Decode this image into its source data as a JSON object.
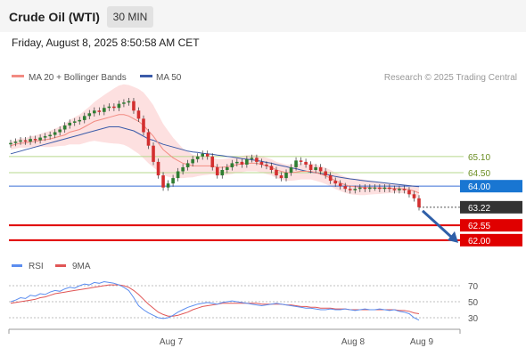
{
  "header": {
    "instrument": "Crude Oil (WTI)",
    "timeframe": "30 MIN",
    "timestamp": "Friday, August 8, 2025 8:50:58 AM CET"
  },
  "legend": {
    "series1": "MA 20 + Bollinger Bands",
    "series2": "MA 50",
    "copyright": "Research © 2025 Trading Central"
  },
  "indicator_legend": {
    "rsi": "RSI",
    "ma9": "9MA"
  },
  "colors": {
    "bullish": "#2e7d32",
    "bearish": "#d32f2f",
    "ma20": "#f28b82",
    "bollinger_fill": "#fde0e0",
    "ma50": "#3b5ba9",
    "support_line": "#e00000",
    "resistance_line": "#b7d88c",
    "pivot_line": "#3b6fd6",
    "pivot_tag": "#1976d2",
    "current_tag": "#333333",
    "target_arrow": "#2f5fa8",
    "rsi_line": "#5b8def",
    "rsi_ma": "#e05555"
  },
  "chart_data": [
    {
      "type": "candlestick",
      "x_labels": [
        "Aug 7",
        "Aug 8",
        "Aug 9"
      ],
      "price_levels": [
        {
          "label": "65.10",
          "value": 65.1,
          "kind": "resistance"
        },
        {
          "label": "64.50",
          "value": 64.5,
          "kind": "resistance"
        },
        {
          "label": "64.00",
          "value": 64.0,
          "kind": "pivot"
        },
        {
          "label": "63.22",
          "value": 63.22,
          "kind": "current"
        },
        {
          "label": "62.55",
          "value": 62.55,
          "kind": "support"
        },
        {
          "label": "62.00",
          "value": 62.0,
          "kind": "support"
        }
      ],
      "close": [
        65.6,
        65.65,
        65.7,
        65.65,
        65.75,
        65.7,
        65.8,
        65.85,
        65.9,
        66.0,
        66.1,
        66.25,
        66.35,
        66.4,
        66.45,
        66.6,
        66.7,
        66.8,
        66.75,
        66.9,
        66.95,
        66.9,
        67.05,
        67.1,
        67.15,
        66.8,
        66.5,
        66.0,
        65.5,
        64.9,
        64.4,
        63.95,
        64.1,
        64.3,
        64.55,
        64.7,
        64.85,
        65.0,
        65.1,
        65.2,
        65.1,
        64.7,
        64.4,
        64.6,
        64.7,
        64.85,
        64.9,
        64.8,
        65.0,
        65.05,
        64.9,
        64.8,
        64.75,
        64.6,
        64.4,
        64.3,
        64.5,
        64.7,
        64.95,
        64.9,
        64.8,
        64.6,
        64.7,
        64.55,
        64.4,
        64.2,
        64.1,
        64.0,
        63.9,
        63.85,
        63.9,
        63.95,
        63.9,
        63.95,
        63.95,
        63.9,
        63.95,
        63.9,
        63.85,
        63.9,
        63.85,
        63.7,
        63.55,
        63.22
      ],
      "ma20": [
        65.5,
        65.55,
        65.6,
        65.6,
        65.65,
        65.65,
        65.7,
        65.72,
        65.75,
        65.8,
        65.85,
        65.9,
        66.0,
        66.05,
        66.1,
        66.2,
        66.3,
        66.4,
        66.45,
        66.5,
        66.55,
        66.6,
        66.65,
        66.65,
        66.6,
        66.5,
        66.4,
        66.25,
        66.05,
        65.85,
        65.6,
        65.35,
        65.2,
        65.05,
        64.95,
        64.85,
        64.8,
        64.75,
        64.75,
        64.75,
        64.75,
        64.75,
        64.7,
        64.7,
        64.72,
        64.75,
        64.8,
        64.82,
        64.85,
        64.85,
        64.85,
        64.8,
        64.75,
        64.7,
        64.6,
        64.55,
        64.5,
        64.5,
        64.52,
        64.55,
        64.55,
        64.55,
        64.5,
        64.45,
        64.38,
        64.3,
        64.2,
        64.12,
        64.05,
        64.0,
        63.98,
        63.97,
        63.95,
        63.95,
        63.94,
        63.93,
        63.93,
        63.92,
        63.92,
        63.91,
        63.9,
        63.87,
        63.82,
        63.75
      ],
      "ma50": [
        65.2,
        65.25,
        65.3,
        65.35,
        65.4,
        65.45,
        65.5,
        65.55,
        65.6,
        65.65,
        65.7,
        65.75,
        65.8,
        65.85,
        65.9,
        65.95,
        66.0,
        66.05,
        66.1,
        66.15,
        66.2,
        66.2,
        66.2,
        66.15,
        66.1,
        66.05,
        65.95,
        65.85,
        65.75,
        65.7,
        65.62,
        65.55,
        65.5,
        65.45,
        65.4,
        65.35,
        65.3,
        65.27,
        65.25,
        65.22,
        65.2,
        65.18,
        65.15,
        65.13,
        65.1,
        65.08,
        65.05,
        65.02,
        65.0,
        64.98,
        64.95,
        64.92,
        64.88,
        64.85,
        64.8,
        64.76,
        64.72,
        64.68,
        64.65,
        64.6,
        64.56,
        64.52,
        64.5,
        64.47,
        64.44,
        64.4,
        64.36,
        64.33,
        64.3,
        64.27,
        64.25,
        64.22,
        64.2,
        64.18,
        64.16,
        64.14,
        64.12,
        64.1,
        64.08,
        64.06,
        64.04,
        64.02,
        64.0,
        63.98
      ],
      "bollinger_width": [
        0.15,
        0.16,
        0.17,
        0.18,
        0.2,
        0.22,
        0.24,
        0.27,
        0.3,
        0.33,
        0.36,
        0.4,
        0.45,
        0.5,
        0.55,
        0.6,
        0.65,
        0.72,
        0.8,
        0.88,
        0.95,
        1.02,
        1.08,
        1.12,
        1.15,
        1.18,
        1.2,
        1.22,
        1.2,
        1.15,
        1.05,
        0.95,
        0.85,
        0.75,
        0.65,
        0.55,
        0.48,
        0.42,
        0.38,
        0.35,
        0.33,
        0.31,
        0.3,
        0.3,
        0.3,
        0.3,
        0.3,
        0.3,
        0.3,
        0.3,
        0.3,
        0.3,
        0.3,
        0.3,
        0.3,
        0.3,
        0.3,
        0.3,
        0.3,
        0.3,
        0.3,
        0.3,
        0.3,
        0.3,
        0.3,
        0.3,
        0.3,
        0.3,
        0.3,
        0.3,
        0.3,
        0.3,
        0.28,
        0.26,
        0.24,
        0.22,
        0.2,
        0.18,
        0.16,
        0.16,
        0.16,
        0.18,
        0.2,
        0.22
      ]
    },
    {
      "type": "line",
      "name": "RSI",
      "y_ticks": [
        70,
        50,
        30
      ],
      "ylim": [
        20,
        80
      ],
      "rsi": [
        50,
        52,
        55,
        54,
        58,
        57,
        60,
        59,
        62,
        64,
        63,
        66,
        68,
        67,
        70,
        72,
        71,
        74,
        73,
        75,
        74,
        73,
        71,
        68,
        64,
        55,
        45,
        40,
        36,
        33,
        30,
        29,
        30,
        33,
        37,
        40,
        43,
        45,
        47,
        48,
        49,
        48,
        47,
        49,
        50,
        51,
        50,
        49,
        48,
        47,
        46,
        45,
        46,
        47,
        48,
        47,
        46,
        45,
        44,
        43,
        42,
        42,
        41,
        40,
        40,
        41,
        40,
        40,
        41,
        40,
        39,
        40,
        41,
        40,
        40,
        41,
        40,
        39,
        40,
        38,
        37,
        35,
        30,
        27
      ],
      "ma9": [
        48,
        49,
        50,
        51,
        52,
        53,
        55,
        56,
        58,
        60,
        61,
        62,
        63,
        64,
        65,
        66,
        67,
        68,
        69,
        70,
        71,
        71,
        71,
        70,
        68,
        64,
        59,
        53,
        47,
        42,
        37,
        34,
        32,
        32,
        33,
        35,
        37,
        40,
        42,
        44,
        45,
        46,
        47,
        48,
        48,
        48,
        48,
        48,
        48,
        48,
        48,
        47,
        47,
        47,
        47,
        47,
        46,
        46,
        45,
        44,
        44,
        43,
        43,
        42,
        42,
        42,
        41,
        41,
        41,
        40,
        40,
        40,
        40,
        40,
        40,
        40,
        40,
        40,
        40,
        39,
        39,
        38,
        36,
        35
      ]
    }
  ]
}
